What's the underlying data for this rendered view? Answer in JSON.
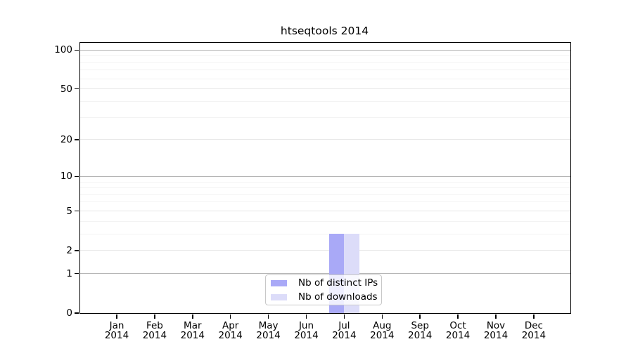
{
  "chart_data": {
    "type": "bar",
    "title": "htseqtools 2014",
    "categories": [
      "Jan 2014",
      "Feb 2014",
      "Mar 2014",
      "Apr 2014",
      "May 2014",
      "Jun 2014",
      "Jul 2014",
      "Aug 2014",
      "Sep 2014",
      "Oct 2014",
      "Nov 2014",
      "Dec 2014"
    ],
    "series": [
      {
        "name": "Nb of distinct IPs",
        "color": "#a9a9f7",
        "values": [
          0,
          0,
          0,
          0,
          0,
          0,
          3,
          0,
          0,
          0,
          0,
          0
        ]
      },
      {
        "name": "Nb of downloads",
        "color": "#dcdcf9",
        "values": [
          0,
          0,
          0,
          0,
          0,
          0,
          3,
          0,
          0,
          0,
          0,
          0
        ]
      }
    ],
    "xlabel": "",
    "ylabel": "",
    "yscale": "log1p",
    "ylim": [
      0,
      113
    ],
    "yticks_major": [
      0,
      1,
      2,
      5,
      10,
      20,
      50,
      100
    ],
    "yticks_minor": [
      3,
      4,
      6,
      7,
      8,
      9,
      30,
      40,
      60,
      70,
      80,
      90
    ],
    "grid": true,
    "legend_position": "lower center (inside plot)",
    "colors": {
      "grid_power_of_ten": "#b4b4b4",
      "grid_major": "#e7e7e7",
      "grid_minor": "#f3f3f3",
      "spine": "#000000"
    }
  }
}
